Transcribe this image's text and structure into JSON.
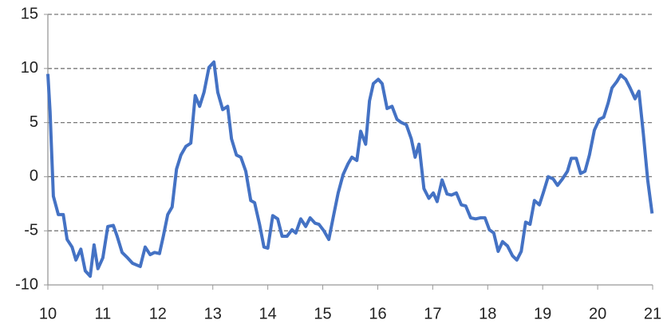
{
  "chart_data": {
    "type": "line",
    "x": [
      10.0,
      10.04,
      10.1,
      10.19,
      10.28,
      10.35,
      10.44,
      10.51,
      10.6,
      10.68,
      10.77,
      10.84,
      10.91,
      11.0,
      11.09,
      11.19,
      11.26,
      11.35,
      11.45,
      11.54,
      11.68,
      11.77,
      11.86,
      11.94,
      12.03,
      12.1,
      12.18,
      12.26,
      12.34,
      12.42,
      12.51,
      12.6,
      12.68,
      12.76,
      12.84,
      12.93,
      13.02,
      13.09,
      13.18,
      13.27,
      13.34,
      13.43,
      13.51,
      13.6,
      13.69,
      13.76,
      13.85,
      13.93,
      14.0,
      14.09,
      14.18,
      14.26,
      14.35,
      14.44,
      14.51,
      14.6,
      14.69,
      14.77,
      14.86,
      14.93,
      15.02,
      15.11,
      15.2,
      15.28,
      15.37,
      15.46,
      15.53,
      15.62,
      15.69,
      15.78,
      15.85,
      15.92,
      16.01,
      16.08,
      16.17,
      16.26,
      16.35,
      16.43,
      16.52,
      16.61,
      16.68,
      16.75,
      16.84,
      16.93,
      17.01,
      17.08,
      17.17,
      17.26,
      17.34,
      17.43,
      17.52,
      17.6,
      17.69,
      17.78,
      17.87,
      17.95,
      18.03,
      18.11,
      18.19,
      18.27,
      18.36,
      18.45,
      18.53,
      18.61,
      18.69,
      18.77,
      18.85,
      18.94,
      19.01,
      19.1,
      19.19,
      19.27,
      19.36,
      19.45,
      19.52,
      19.61,
      19.69,
      19.77,
      19.85,
      19.94,
      20.03,
      20.11,
      20.19,
      20.26,
      20.35,
      20.42,
      20.51,
      20.59,
      20.68,
      20.75,
      20.83,
      20.91,
      20.99
    ],
    "series": [
      {
        "color": "#4472c4",
        "values": [
          9.5,
          6,
          -1.8,
          -3.5,
          -3.5,
          -5.8,
          -6.5,
          -7.7,
          -6.7,
          -8.7,
          -9.2,
          -6.3,
          -8.5,
          -7.5,
          -4.6,
          -4.5,
          -5.5,
          -7,
          -7.5,
          -8,
          -8.3,
          -6.5,
          -7.2,
          -7,
          -7.1,
          -5.5,
          -3.5,
          -2.8,
          0.7,
          2,
          2.8,
          3.1,
          7.5,
          6.5,
          7.8,
          10.1,
          10.6,
          7.8,
          6.2,
          6.5,
          3.5,
          2,
          1.8,
          0.5,
          -2.2,
          -2.4,
          -4.4,
          -6.5,
          -6.6,
          -3.6,
          -3.9,
          -5.5,
          -5.5,
          -4.9,
          -5.2,
          -3.9,
          -4.6,
          -3.8,
          -4.3,
          -4.4,
          -5,
          -5.8,
          -3.5,
          -1.5,
          0.2,
          1.2,
          1.8,
          1.5,
          4.2,
          3,
          7,
          8.6,
          9,
          8.6,
          6.3,
          6.5,
          5.3,
          5,
          4.8,
          3.5,
          1.8,
          3,
          -1.1,
          -2,
          -1.5,
          -2.3,
          -0.3,
          -1.6,
          -1.7,
          -1.5,
          -2.6,
          -2.7,
          -3.8,
          -3.9,
          -3.8,
          -3.8,
          -4.9,
          -5.2,
          -6.9,
          -6,
          -6.4,
          -7.3,
          -7.7,
          -6.9,
          -4.2,
          -4.4,
          -2.2,
          -2.6,
          -1.5,
          0,
          -0.2,
          -0.8,
          -0.2,
          0.5,
          1.7,
          1.7,
          0.3,
          0.5,
          2,
          4.3,
          5.3,
          5.5,
          6.8,
          8.2,
          8.8,
          9.4,
          9,
          8.2,
          7.2,
          7.9,
          4,
          -0.3,
          -3.4
        ]
      }
    ],
    "xlim": [
      10,
      21
    ],
    "xticks": [
      10,
      11,
      12,
      13,
      14,
      15,
      16,
      17,
      18,
      19,
      20,
      21
    ],
    "ylim": [
      -10,
      15
    ],
    "yticks": [
      -10,
      -5,
      0,
      5,
      10,
      15
    ],
    "grid": true
  }
}
